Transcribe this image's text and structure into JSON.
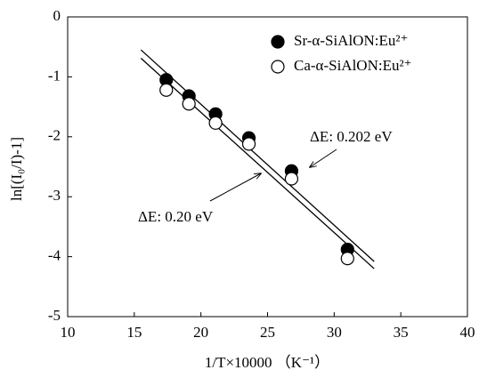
{
  "chart_data": {
    "type": "scatter",
    "x_label": "1/T×10000 （K⁻¹）",
    "y_label": "ln[(I₀/I)-1]",
    "xlim": [
      10,
      40
    ],
    "xticks": [
      10,
      15,
      20,
      25,
      30,
      35,
      40
    ],
    "ylim": [
      -5,
      0
    ],
    "yticks": [
      -5,
      -4,
      -3,
      -2,
      -1,
      0
    ],
    "series": [
      {
        "name": "Sr-α-SiAlON:Eu²⁺",
        "color": "#000000",
        "filled": true,
        "x": [
          17.4,
          19.1,
          21.1,
          23.6,
          26.8,
          31.0
        ],
        "values": [
          -1.05,
          -1.32,
          -1.62,
          -2.02,
          -2.57,
          -3.88
        ]
      },
      {
        "name": "Ca-α-SiAlON:Eu²⁺",
        "color": "#000000",
        "filled": false,
        "x": [
          17.4,
          19.1,
          21.1,
          23.6,
          26.8,
          31.0
        ],
        "values": [
          -1.22,
          -1.45,
          -1.77,
          -2.12,
          -2.7,
          -4.03
        ]
      }
    ],
    "fit_lines": [
      {
        "x": [
          15.5,
          33
        ],
        "values": [
          -0.55,
          -4.08
        ]
      },
      {
        "x": [
          15.5,
          33
        ],
        "values": [
          -0.69,
          -4.2
        ]
      }
    ],
    "annotations": [
      {
        "text": "ΔE: 0.202 eV"
      },
      {
        "text": "ΔE: 0.20 eV"
      }
    ]
  }
}
